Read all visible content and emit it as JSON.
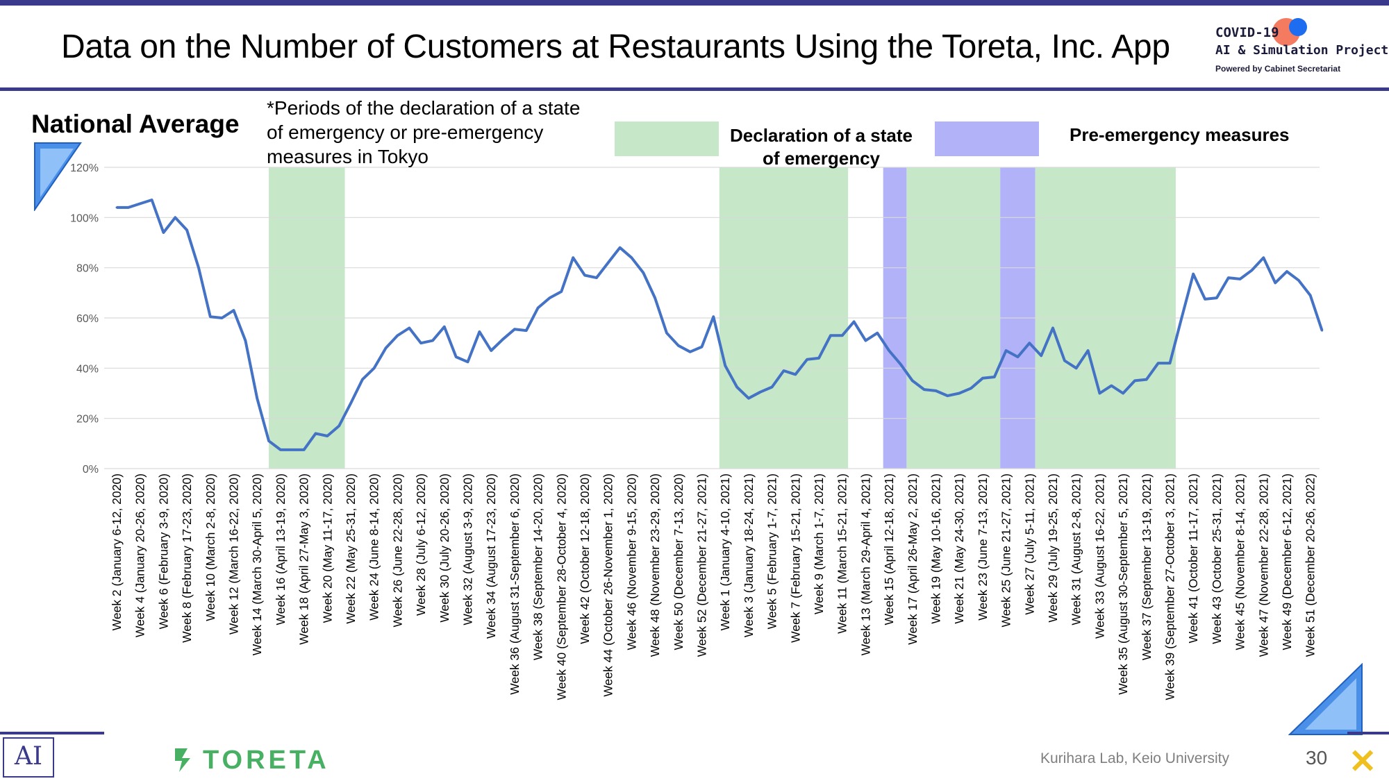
{
  "header": {
    "title": "Data on the Number of Customers at Restaurants Using the Toreta, Inc. App",
    "logo_line1": "COVID-19",
    "logo_line2": "AI & Simulation Project",
    "logo_line3": "Powered by Cabinet Secretariat"
  },
  "chart_heading": "National Average",
  "periods_note": "*Periods of the declaration of a state of emergency or pre-emergency measures in Tokyo",
  "legend": {
    "emergency_label": "Declaration of a state of emergency",
    "emergency_color": "#c6e8c8",
    "pre_emergency_label": "Pre-emergency measures",
    "pre_emergency_color": "#b2b2f8"
  },
  "footer": {
    "toreta": "TORETA",
    "credit": "Kurihara Lab, Keio University",
    "page_number": "30",
    "ai_logo_icon": "ai-logo-icon"
  },
  "chart_data": {
    "type": "line",
    "title": "National Average",
    "xlabel": "",
    "ylabel": "",
    "ylim": [
      0,
      120
    ],
    "yticks": [
      "0%",
      "20%",
      "40%",
      "60%",
      "80%",
      "100%",
      "120%"
    ],
    "ytick_values": [
      0,
      20,
      40,
      60,
      80,
      100,
      120
    ],
    "grid": true,
    "line_color": "#4472c4",
    "tick_labels": [
      "Week 2 (January 6-12, 2020)",
      "Week 4 (January 20-26, 2020)",
      "Week 6 (February 3-9, 2020)",
      "Week 8 (February 17-23, 2020)",
      "Week 10 (March 2-8, 2020)",
      "Week 12 (March 16-22, 2020)",
      "Week 14 (March 30-April 5, 2020)",
      "Week 16 (April 13-19, 2020)",
      "Week 18 (April 27-May 3, 2020)",
      "Week 20 (May 11-17, 2020)",
      "Week 22 (May 25-31, 2020)",
      "Week 24 (June 8-14, 2020)",
      "Week 26 (June 22-28, 2020)",
      "Week 28 (July 6-12, 2020)",
      "Week 30 (July 20-26, 2020)",
      "Week 32 (August 3-9, 2020)",
      "Week 34 (August 17-23, 2020)",
      "Week 36 (August 31-September 6, 2020)",
      "Week 38 (September 14-20, 2020)",
      "Week 40 (September 28-October 4, 2020)",
      "Week 42 (October 12-18, 2020)",
      "Week 44 (October 26-November 1, 2020)",
      "Week 46 (November 9-15, 2020)",
      "Week 48 (November 23-29, 2020)",
      "Week 50 (December 7-13, 2020)",
      "Week 52 (December 21-27, 2021)",
      "Week 1 (January 4-10, 2021)",
      "Week 3 (January 18-24, 2021)",
      "Week 5 (February 1-7, 2021)",
      "Week 7 (February 15-21, 2021)",
      "Week 9 (March 1-7, 2021)",
      "Week 11 (March 15-21, 2021)",
      "Week 13 (March 29-April 4, 2021)",
      "Week 15 (April 12-18, 2021)",
      "Week 17 (April 26-May 2, 2021)",
      "Week 19 (May 10-16, 2021)",
      "Week 21 (May 24-30, 2021)",
      "Week 23 (June 7-13, 2021)",
      "Week 25 (June 21-27, 2021)",
      "Week 27 (July 5-11, 2021)",
      "Week 29 (July 19-25, 2021)",
      "Week 31 (August 2-8, 2021)",
      "Week 33 (August 16-22, 2021)",
      "Week 35 (August 30-September 5, 2021)",
      "Week 37 (September 13-19, 2021)",
      "Week 39 (September 27-October 3, 2021)",
      "Week 41 (October 11-17, 2021)",
      "Week 43 (October 25-31, 2021)",
      "Week 45 (November 8-14, 2021)",
      "Week 47 (November 22-28, 2021)",
      "Week 49 (December 6-12, 2021)",
      "Week 51 (December 20-26, 2022)"
    ],
    "tick_every": 2,
    "values": [
      104,
      104,
      105.5,
      107,
      94,
      100,
      95,
      80,
      60.5,
      60,
      63,
      51,
      28,
      11,
      7.5,
      7.5,
      7.5,
      14,
      13,
      17,
      26,
      35.5,
      40,
      48,
      53,
      56,
      50,
      51,
      56.5,
      44.5,
      42.5,
      54.5,
      47,
      51.5,
      55.5,
      55,
      64,
      68,
      70.5,
      84,
      77,
      76,
      82,
      88,
      84,
      78,
      68,
      54,
      49,
      46.5,
      48.5,
      60.5,
      41,
      32.5,
      28,
      30.5,
      32.5,
      39,
      37.5,
      43.5,
      44,
      53,
      53,
      58.5,
      51,
      54,
      47,
      41.5,
      35,
      31.5,
      31,
      29,
      30,
      32,
      36,
      36.5,
      47,
      44.5,
      50,
      45,
      56,
      43,
      40,
      47,
      30,
      33,
      30,
      35,
      35.5,
      42,
      42,
      60,
      77.5,
      67.5,
      68,
      76,
      75.5,
      79,
      84,
      74,
      78.5,
      75,
      69,
      55
    ],
    "shaded_periods": [
      {
        "type": "emergency",
        "start_index": 13,
        "end_index": 19.5
      },
      {
        "type": "emergency",
        "start_index": 51.5,
        "end_index": 62.5
      },
      {
        "type": "pre-emergency",
        "start_index": 65.5,
        "end_index": 67.5
      },
      {
        "type": "emergency",
        "start_index": 67.5,
        "end_index": 75.5
      },
      {
        "type": "pre-emergency",
        "start_index": 75.5,
        "end_index": 78.5
      },
      {
        "type": "emergency",
        "start_index": 78.5,
        "end_index": 90.5
      }
    ]
  }
}
